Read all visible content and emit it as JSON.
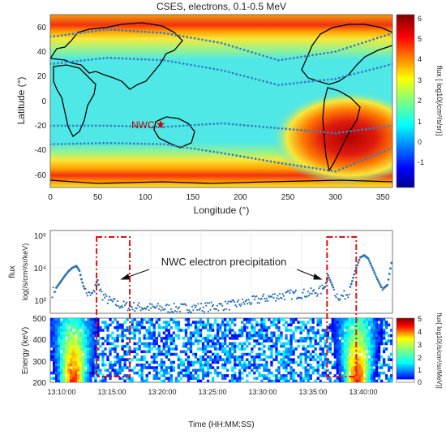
{
  "chart_data": [
    {
      "type": "heatmap",
      "title": "CSES, electrons, 0.1-0.5 MeV",
      "xlabel": "Longitude (°)",
      "ylabel": "Latitude (°)",
      "xlim": [
        0,
        360
      ],
      "ylim": [
        -70,
        70
      ],
      "xticks": [
        "0",
        "50",
        "100",
        "150",
        "200",
        "250",
        "300",
        "350"
      ],
      "yticks": [
        "60",
        "40",
        "20",
        "0",
        "-20",
        "-40",
        "-60"
      ],
      "colorbar": {
        "label": "flux [ log10(/cm²/s/sr)]",
        "range": [
          -2,
          6.4
        ],
        "ticks": [
          "6",
          "5",
          "4",
          "3",
          "2",
          "1",
          "0",
          "-1"
        ]
      },
      "annotation": {
        "text": "NWC",
        "lon": 116,
        "lat": -22
      },
      "dotted_tracks": [
        {
          "name": "northern_upper",
          "lon": [
            0,
            60,
            120,
            180,
            240,
            300,
            360
          ],
          "lat": [
            52,
            58,
            55,
            47,
            33,
            40,
            55
          ]
        },
        {
          "name": "northern_lower",
          "lon": [
            0,
            60,
            120,
            180,
            240,
            300,
            360
          ],
          "lat": [
            30,
            35,
            33,
            25,
            13,
            18,
            30
          ]
        },
        {
          "name": "southern_upper",
          "lon": [
            0,
            60,
            120,
            180,
            240,
            300,
            360
          ],
          "lat": [
            -20,
            -20,
            -21,
            -18,
            -22,
            -26,
            -20
          ]
        },
        {
          "name": "southern_lower",
          "lon": [
            0,
            60,
            120,
            180,
            240,
            300,
            360
          ],
          "lat": [
            -35,
            -34,
            -35,
            -42,
            -50,
            -57,
            -38
          ]
        }
      ],
      "features": [
        {
          "name": "south_atlantic_anomaly",
          "lon": 310,
          "lat": -35,
          "level": 6
        },
        {
          "name": "outer_belt_north",
          "lat": 58,
          "level": 4.5
        },
        {
          "name": "outer_belt_south",
          "lat": -55,
          "level": 4.5
        }
      ]
    },
    {
      "type": "scatter",
      "ylabel": "flux",
      "ylabel2": "log(/s/cm²/sr/keV)",
      "yscale": "log",
      "ylim": [
        100,
        1000000
      ],
      "yticks": [
        "10⁶",
        "10⁴",
        "10²"
      ],
      "annotation": "NWC electron precipitation",
      "series": [
        {
          "minutes_after_1310": [
            0.2,
            0.6,
            1.0,
            1.4,
            1.8,
            2.2,
            2.6,
            2.9,
            3.1,
            3.3,
            3.6,
            4.0,
            4.3,
            4.5,
            4.7,
            4.9,
            5.2,
            5.6,
            6.0,
            6.6,
            7.4,
            8.5,
            10,
            12,
            14,
            16,
            18,
            20,
            22,
            24,
            25.5,
            26.2,
            26.8,
            27.3,
            27.6,
            28.0,
            28.4,
            28.8,
            29.2,
            29.6,
            30.0,
            30.4,
            30.8,
            31.2,
            31.6,
            32.0,
            32.5,
            33.0,
            33.5,
            34.0
          ],
          "values": [
            1000,
            1800,
            3500,
            7000,
            13000,
            20000,
            25000,
            14000,
            5000,
            2200,
            900,
            700,
            900,
            2500,
            4500,
            1500,
            700,
            450,
            350,
            250,
            200,
            180,
            160,
            150,
            160,
            180,
            220,
            350,
            600,
            800,
            900,
            1000,
            1200,
            2000,
            8000,
            2500,
            800,
            600,
            700,
            1000,
            4000,
            20000,
            70000,
            90000,
            60000,
            20000,
            5000,
            1500,
            2500,
            70000
          ]
        }
      ]
    },
    {
      "type": "heatmap",
      "xlabel": "Time (HH:MM:SS)",
      "ylabel": "Energy (keV)",
      "ylim": [
        200,
        500
      ],
      "yticks": [
        "500",
        "400",
        "300",
        "200"
      ],
      "xticks": [
        "13:10:00",
        "13:15:00",
        "13:20:00",
        "13:25:00",
        "13:30:00",
        "13:35:00",
        "13:40:00"
      ],
      "colorbar": {
        "label": "flux[ log10(/s/cm²/sr/MeV)]",
        "range": [
          0,
          5
        ],
        "ticks": [
          "5",
          "4",
          "3",
          "2",
          "1",
          "0"
        ]
      },
      "highlight_windows_minutes_after_1310": [
        [
          4.6,
          7.9
        ],
        [
          27.5,
          30.4
        ]
      ],
      "belt_crossings_minutes_after_1310": [
        2.3,
        30.5
      ]
    }
  ]
}
